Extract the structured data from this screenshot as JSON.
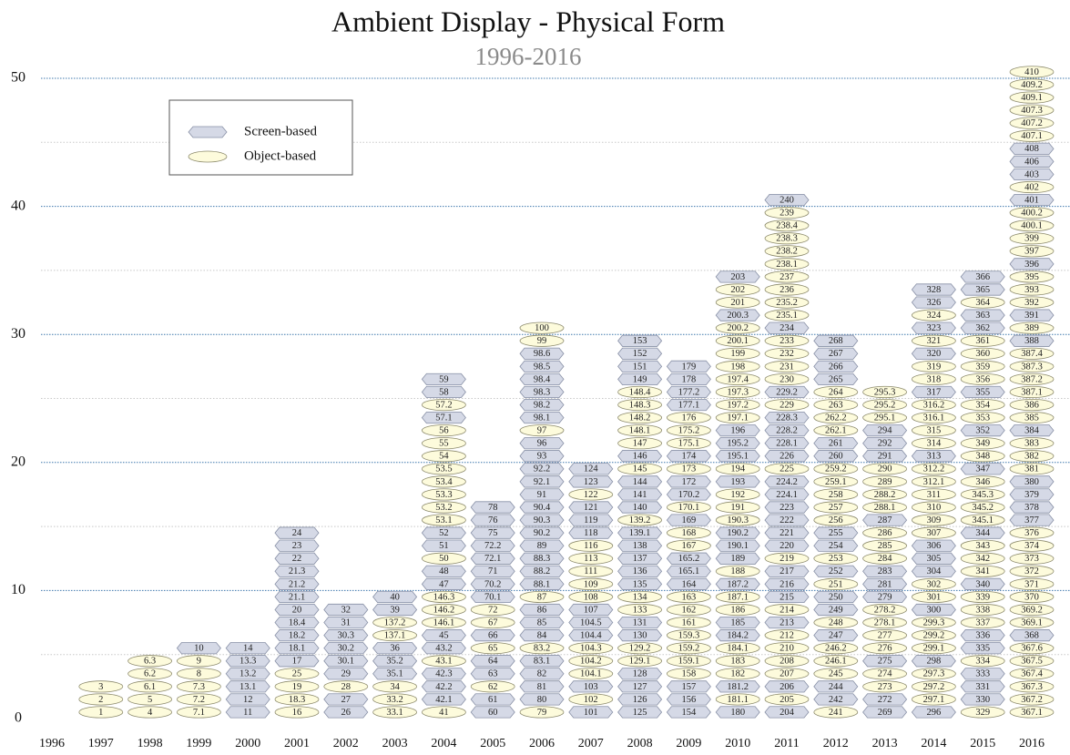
{
  "chart_data": {
    "type": "unitstack",
    "title": "Ambient Display - Physical Form",
    "subtitle": "1996-2016",
    "categories": [
      "1996",
      "1997",
      "1998",
      "1999",
      "2000",
      "2001",
      "2002",
      "2003",
      "2004",
      "2005",
      "2006",
      "2007",
      "2008",
      "2009",
      "2010",
      "2011",
      "2012",
      "2013",
      "2014",
      "2015",
      "2016"
    ],
    "series": [
      {
        "name": "Screen-based",
        "shape": "hexagon",
        "color": "#d5d9e6",
        "stroke": "#8890a6"
      },
      {
        "name": "Object-based",
        "shape": "ellipse",
        "color": "#fdfbdc",
        "stroke": "#8c8a6c"
      }
    ],
    "stacks": [
      {
        "labels": [],
        "series": []
      },
      {
        "labels": [
          "1",
          "2",
          "3"
        ],
        "series": [
          1,
          1,
          1
        ]
      },
      {
        "labels": [
          "4",
          "5",
          "6.1",
          "6.2",
          "6.3"
        ],
        "series": [
          1,
          1,
          1,
          1,
          1
        ]
      },
      {
        "labels": [
          "7.1",
          "7.2",
          "7.3",
          "8",
          "9",
          "10"
        ],
        "series": [
          1,
          1,
          1,
          1,
          1,
          0
        ]
      },
      {
        "labels": [
          "11",
          "12",
          "13.1",
          "13.2",
          "13.3",
          "14"
        ],
        "series": [
          0,
          0,
          0,
          0,
          0,
          0
        ]
      },
      {
        "labels": [
          "16",
          "18.3",
          "19",
          "25",
          "17",
          "18.1",
          "18.2",
          "18.4",
          "20",
          "21.1",
          "21.2",
          "21.3",
          "22",
          "23",
          "24"
        ],
        "series": [
          1,
          1,
          1,
          1,
          0,
          0,
          0,
          0,
          0,
          0,
          0,
          0,
          0,
          0,
          0
        ]
      },
      {
        "labels": [
          "26",
          "27",
          "28",
          "29",
          "30.1",
          "30.2",
          "30.3",
          "31",
          "32"
        ],
        "series": [
          0,
          0,
          1,
          0,
          0,
          0,
          0,
          0,
          0
        ]
      },
      {
        "labels": [
          "33.1",
          "33.2",
          "34",
          "35.1",
          "35.2",
          "36",
          "137.1",
          "137.2",
          "39",
          "40"
        ],
        "series": [
          1,
          1,
          1,
          0,
          0,
          0,
          1,
          1,
          0,
          0
        ]
      },
      {
        "labels": [
          "41",
          "42.1",
          "42.2",
          "42.3",
          "43.1",
          "43.2",
          "45",
          "146.1",
          "146.2",
          "146.3",
          "47",
          "48",
          "50",
          "51",
          "52",
          "53.1",
          "53.2",
          "53.3",
          "53.4",
          "53.5",
          "54",
          "55",
          "56",
          "57.1",
          "57.2",
          "58",
          "59"
        ],
        "series": [
          1,
          0,
          0,
          0,
          1,
          0,
          0,
          1,
          1,
          1,
          0,
          0,
          1,
          0,
          0,
          1,
          1,
          1,
          1,
          1,
          1,
          1,
          1,
          0,
          1,
          0,
          0
        ]
      },
      {
        "labels": [
          "60",
          "61",
          "62",
          "63",
          "64",
          "65",
          "66",
          "67",
          "72",
          "70.1",
          "70.2",
          "71",
          "72.1",
          "72.2",
          "75",
          "76",
          "78"
        ],
        "series": [
          0,
          0,
          1,
          0,
          0,
          1,
          0,
          1,
          1,
          0,
          0,
          0,
          0,
          0,
          0,
          0,
          0
        ]
      },
      {
        "labels": [
          "79",
          "80",
          "81",
          "82",
          "83.1",
          "83.2",
          "84",
          "85",
          "86",
          "87",
          "88.1",
          "88.2",
          "88.3",
          "89",
          "90.2",
          "90.3",
          "90.4",
          "91",
          "92.1",
          "92.2",
          "93",
          "96",
          "97",
          "98.1",
          "98.2",
          "98.3",
          "98.4",
          "98.5",
          "98.6",
          "99",
          "100"
        ],
        "series": [
          1,
          0,
          0,
          0,
          0,
          1,
          0,
          0,
          0,
          1,
          0,
          0,
          0,
          0,
          0,
          0,
          0,
          0,
          0,
          0,
          0,
          0,
          1,
          0,
          0,
          0,
          0,
          0,
          0,
          1,
          1
        ]
      },
      {
        "labels": [
          "101",
          "102",
          "103",
          "104.1",
          "104.2",
          "104.3",
          "104.4",
          "104.5",
          "107",
          "108",
          "109",
          "111",
          "113",
          "116",
          "118",
          "119",
          "121",
          "122",
          "123",
          "124"
        ],
        "series": [
          0,
          1,
          0,
          1,
          1,
          1,
          0,
          0,
          0,
          1,
          1,
          1,
          1,
          1,
          0,
          0,
          0,
          1,
          0,
          0
        ]
      },
      {
        "labels": [
          "125",
          "126",
          "127",
          "128",
          "129.1",
          "129.2",
          "130",
          "131",
          "133",
          "134",
          "135",
          "136",
          "137",
          "138",
          "139.1",
          "139.2",
          "140",
          "141",
          "144",
          "145",
          "146",
          "147",
          "148.1",
          "148.2",
          "148.3",
          "148.4",
          "149",
          "151",
          "152",
          "153"
        ],
        "series": [
          0,
          0,
          0,
          0,
          1,
          1,
          0,
          0,
          1,
          1,
          0,
          0,
          0,
          0,
          0,
          1,
          0,
          0,
          0,
          1,
          0,
          1,
          1,
          1,
          1,
          1,
          0,
          0,
          0,
          0
        ]
      },
      {
        "labels": [
          "154",
          "156",
          "157",
          "158",
          "159.1",
          "159.2",
          "159.3",
          "161",
          "162",
          "163",
          "164",
          "165.1",
          "165.2",
          "167",
          "168",
          "169",
          "170.1",
          "170.2",
          "172",
          "173",
          "174",
          "175.1",
          "175.2",
          "176",
          "177.1",
          "177.2",
          "178",
          "179"
        ],
        "series": [
          0,
          0,
          0,
          1,
          1,
          1,
          1,
          1,
          1,
          1,
          0,
          0,
          0,
          1,
          1,
          0,
          1,
          0,
          0,
          1,
          0,
          1,
          1,
          1,
          0,
          0,
          0,
          0
        ]
      },
      {
        "labels": [
          "180",
          "181.1",
          "181.2",
          "182",
          "183",
          "184.1",
          "184.2",
          "185",
          "186",
          "187.1",
          "187.2",
          "188",
          "189",
          "190.1",
          "190.2",
          "190.3",
          "191",
          "192",
          "193",
          "194",
          "195.1",
          "195.2",
          "196",
          "197.1",
          "197.2",
          "197.3",
          "197.4",
          "198",
          "199",
          "200.1",
          "200.2",
          "200.3",
          "201",
          "202",
          "203"
        ],
        "series": [
          0,
          1,
          0,
          1,
          1,
          1,
          0,
          0,
          1,
          1,
          0,
          1,
          0,
          0,
          0,
          1,
          1,
          1,
          0,
          1,
          0,
          0,
          0,
          1,
          1,
          1,
          1,
          1,
          1,
          1,
          1,
          0,
          1,
          1,
          0
        ]
      },
      {
        "labels": [
          "204",
          "205",
          "206",
          "207",
          "208",
          "210",
          "212",
          "213",
          "214",
          "215",
          "216",
          "217",
          "219",
          "220",
          "221",
          "222",
          "223",
          "224.1",
          "224.2",
          "225",
          "226",
          "228.1",
          "228.2",
          "228.3",
          "229",
          "229.2",
          "230",
          "231",
          "232",
          "233",
          "234",
          "235.1",
          "235.2",
          "236",
          "237",
          "238.1",
          "238.2",
          "238.3",
          "238.4",
          "239",
          "240"
        ],
        "series": [
          0,
          1,
          0,
          1,
          1,
          1,
          1,
          0,
          1,
          0,
          0,
          0,
          1,
          0,
          0,
          0,
          0,
          0,
          0,
          1,
          0,
          0,
          0,
          0,
          1,
          0,
          1,
          1,
          1,
          1,
          0,
          1,
          1,
          1,
          1,
          1,
          1,
          1,
          1,
          1,
          0
        ]
      },
      {
        "labels": [
          "241",
          "242",
          "244",
          "245",
          "246.1",
          "246.2",
          "247",
          "248",
          "249",
          "250",
          "251",
          "252",
          "253",
          "254",
          "255",
          "256",
          "257",
          "258",
          "259.1",
          "259.2",
          "260",
          "261",
          "262.1",
          "262.2",
          "263",
          "264",
          "265",
          "266",
          "267",
          "268"
        ],
        "series": [
          1,
          0,
          0,
          1,
          1,
          1,
          0,
          1,
          0,
          0,
          1,
          0,
          1,
          0,
          0,
          1,
          1,
          1,
          1,
          1,
          0,
          0,
          1,
          1,
          1,
          1,
          0,
          0,
          0,
          0
        ]
      },
      {
        "labels": [
          "269",
          "272",
          "273",
          "274",
          "275",
          "276",
          "277",
          "278.1",
          "278.2",
          "279",
          "281",
          "283",
          "284",
          "285",
          "286",
          "287",
          "288.1",
          "288.2",
          "289",
          "290",
          "291",
          "292",
          "294",
          "295.1",
          "295.2",
          "295.3"
        ],
        "series": [
          0,
          0,
          1,
          1,
          0,
          1,
          1,
          1,
          1,
          0,
          0,
          0,
          1,
          1,
          1,
          0,
          1,
          1,
          1,
          1,
          0,
          0,
          0,
          1,
          1,
          1
        ]
      },
      {
        "labels": [
          "296",
          "297.1",
          "297.2",
          "297.3",
          "298",
          "299.1",
          "299.2",
          "299.3",
          "300",
          "301",
          "302",
          "304",
          "305",
          "306",
          "307",
          "309",
          "310",
          "311",
          "312.1",
          "312.2",
          "313",
          "314",
          "315",
          "316.1",
          "316.2",
          "317",
          "318",
          "319",
          "320",
          "321",
          "323",
          "324",
          "326",
          "328"
        ],
        "series": [
          0,
          1,
          1,
          1,
          0,
          1,
          1,
          1,
          0,
          1,
          1,
          0,
          0,
          0,
          1,
          1,
          1,
          1,
          1,
          1,
          0,
          1,
          1,
          1,
          1,
          0,
          1,
          1,
          0,
          1,
          0,
          1,
          0,
          0
        ]
      },
      {
        "labels": [
          "329",
          "330",
          "331",
          "333",
          "334",
          "335",
          "336",
          "337",
          "338",
          "339",
          "340",
          "341",
          "342",
          "343",
          "344",
          "345.1",
          "345.2",
          "345.3",
          "346",
          "347",
          "348",
          "349",
          "352",
          "353",
          "354",
          "355",
          "356",
          "359",
          "360",
          "361",
          "362",
          "363",
          "364",
          "365",
          "366"
        ],
        "series": [
          1,
          0,
          0,
          0,
          1,
          0,
          0,
          1,
          1,
          1,
          0,
          1,
          1,
          1,
          0,
          1,
          1,
          1,
          1,
          0,
          1,
          1,
          0,
          1,
          1,
          0,
          1,
          1,
          1,
          1,
          0,
          0,
          1,
          0,
          0
        ]
      },
      {
        "labels": [
          "367.1",
          "367.2",
          "367.3",
          "367.4",
          "367.5",
          "367.6",
          "368",
          "369.1",
          "369.2",
          "370",
          "371",
          "372",
          "373",
          "374",
          "376",
          "377",
          "378",
          "379",
          "380",
          "381",
          "382",
          "383",
          "384",
          "385",
          "386",
          "387.1",
          "387.2",
          "387.3",
          "387.4",
          "388",
          "389",
          "391",
          "392",
          "393",
          "395",
          "396",
          "397",
          "399",
          "400.1",
          "400.2",
          "401",
          "402",
          "403",
          "406",
          "408",
          "407.1",
          "407.2",
          "407.3",
          "409.1",
          "409.2",
          "410"
        ],
        "series": [
          1,
          1,
          1,
          1,
          1,
          1,
          0,
          1,
          1,
          1,
          1,
          1,
          1,
          1,
          1,
          0,
          0,
          0,
          0,
          1,
          1,
          1,
          0,
          1,
          1,
          1,
          1,
          1,
          1,
          0,
          1,
          0,
          1,
          1,
          1,
          0,
          1,
          1,
          1,
          1,
          0,
          1,
          0,
          0,
          0,
          1,
          1,
          1,
          1,
          1,
          1
        ]
      }
    ],
    "ylim": [
      0,
      50
    ],
    "yticks": [
      0,
      10,
      20,
      30,
      40,
      50
    ],
    "minor_yticks": [
      5,
      15,
      25,
      35,
      45
    ],
    "grid": true,
    "legend": "upper left"
  }
}
